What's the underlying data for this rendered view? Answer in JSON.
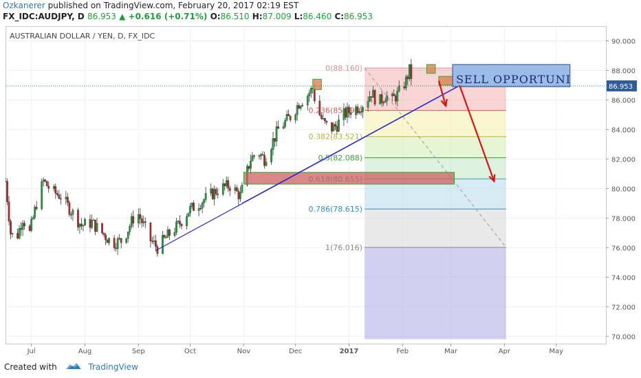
{
  "header": {
    "author": "Ozkanerer",
    "published": "published on TradingView.com, February 20, 2017 02:19 EST",
    "symbol": "FX_IDC:AUDJPY, D",
    "last": "86.953",
    "change": "▲ +0.616 (+0.71%)",
    "o_label": "O:",
    "o": "86.510",
    "h_label": "H:",
    "h": "87.009",
    "l_label": "L:",
    "l": "86.460",
    "c_label": "C:",
    "c": "86.953"
  },
  "footer": {
    "created_with": "Created with",
    "brand": "TradingView"
  },
  "colors": {
    "up": "#1e9e3a",
    "down": "#b22a2a",
    "trend": "#2a2ad0",
    "arrow": "#e01010",
    "price_tag": "#2f5d9c"
  },
  "chart_data": {
    "type": "candlestick",
    "title": "AUSTRALIAN DOLLAR / YEN, D, FX_IDC",
    "ylim": [
      69.5,
      91
    ],
    "y_ticks": [
      "70.000",
      "72.000",
      "74.000",
      "76.000",
      "78.000",
      "80.000",
      "82.000",
      "84.000",
      "86.000",
      "88.000",
      "90.000"
    ],
    "x_ticks": [
      {
        "label": "Jul",
        "day": 15
      },
      {
        "label": "Aug",
        "day": 46
      },
      {
        "label": "Sep",
        "day": 77
      },
      {
        "label": "Oct",
        "day": 107
      },
      {
        "label": "Nov",
        "day": 138
      },
      {
        "label": "Dec",
        "day": 168
      },
      {
        "label": "2017",
        "day": 199
      },
      {
        "label": "Feb",
        "day": 230
      },
      {
        "label": "Mar",
        "day": 258
      },
      {
        "label": "Apr",
        "day": 289
      },
      {
        "label": "May",
        "day": 319
      }
    ],
    "last_price": "86.953",
    "price_path": [
      [
        0,
        80.5
      ],
      [
        3,
        77.0
      ],
      [
        6,
        76.5
      ],
      [
        10,
        78.0
      ],
      [
        14,
        77.0
      ],
      [
        18,
        79.0
      ],
      [
        22,
        80.5
      ],
      [
        27,
        79.8
      ],
      [
        32,
        79.5
      ],
      [
        38,
        78.5
      ],
      [
        44,
        77.5
      ],
      [
        50,
        77.7
      ],
      [
        56,
        77.0
      ],
      [
        62,
        76.3
      ],
      [
        68,
        76.5
      ],
      [
        72,
        77.5
      ],
      [
        76,
        78.5
      ],
      [
        80,
        77.5
      ],
      [
        84,
        76.5
      ],
      [
        88,
        76.0
      ],
      [
        94,
        76.8
      ],
      [
        100,
        77.5
      ],
      [
        106,
        78.5
      ],
      [
        112,
        79.0
      ],
      [
        118,
        79.5
      ],
      [
        124,
        80.0
      ],
      [
        130,
        80.2
      ],
      [
        136,
        79.5
      ],
      [
        142,
        82.0
      ],
      [
        146,
        82.5
      ],
      [
        150,
        82.0
      ],
      [
        154,
        83.0
      ],
      [
        158,
        84.0
      ],
      [
        162,
        84.5
      ],
      [
        166,
        85.0
      ],
      [
        170,
        85.8
      ],
      [
        174,
        86.2
      ],
      [
        178,
        86.8
      ],
      [
        180,
        85.5
      ],
      [
        184,
        84.5
      ],
      [
        188,
        84.0
      ],
      [
        192,
        84.3
      ],
      [
        196,
        85.0
      ],
      [
        200,
        85.3
      ],
      [
        204,
        85.5
      ],
      [
        208,
        85.8
      ],
      [
        212,
        86.5
      ],
      [
        216,
        85.8
      ],
      [
        220,
        86.3
      ],
      [
        224,
        86.0
      ],
      [
        228,
        86.5
      ],
      [
        232,
        87.3
      ],
      [
        234,
        88.0
      ],
      [
        236,
        87.2
      ],
      [
        237,
        86.95
      ]
    ],
    "fibonacci": [
      {
        "ratio": "0",
        "value": 88.16,
        "label": "0(88.160)",
        "color": "#e08f8f",
        "fill": "rgba(235,120,120,0.30)"
      },
      {
        "ratio": "0.236",
        "value": 85.294,
        "label": "0.236(85.294)",
        "color": "#d65a5a",
        "fill": "rgba(245,235,150,0.45)"
      },
      {
        "ratio": "0.382",
        "value": 83.521,
        "label": "0.382(83.521)",
        "color": "#b6b62a",
        "fill": "rgba(200,235,160,0.45)"
      },
      {
        "ratio": "0.5",
        "value": 82.088,
        "label": "0.5(82.088)",
        "color": "#3aa23a",
        "fill": "rgba(170,225,175,0.40)"
      },
      {
        "ratio": "0.618",
        "value": 80.655,
        "label": "0.618(80.655)",
        "color": "#3aa0a0",
        "fill": "rgba(175,215,235,0.50)"
      },
      {
        "ratio": "0.786",
        "value": 78.615,
        "label": "0.786(78.615)",
        "color": "#2a8fc0",
        "fill": "rgba(215,215,215,0.55)"
      },
      {
        "ratio": "1",
        "value": 76.016,
        "label": "1(76.016)",
        "color": "#888888",
        "fill": "rgba(150,150,225,0.45)"
      }
    ],
    "fib_bottom": 69.8,
    "fib_day_range": [
      208,
      290
    ],
    "fib_diagonal": [
      [
        208,
        88.16
      ],
      [
        290,
        76.016
      ]
    ],
    "trendlines": [
      [
        [
          87,
          75.8
        ],
        [
          262,
          86.9
        ]
      ],
      [
        [
          137,
          79.0
        ],
        [
          268,
          87.3
        ]
      ]
    ],
    "zones": [
      {
        "days": [
          138,
          260
        ],
        "y": [
          80.3,
          81.1
        ],
        "fill": "rgba(205,95,95,0.75)",
        "stroke": "#33a833"
      },
      {
        "days": [
          178,
          183
        ],
        "y": [
          86.7,
          87.4
        ],
        "fill": "rgba(215,130,80,0.8)",
        "stroke": "#33a833"
      },
      {
        "days": [
          244,
          249
        ],
        "y": [
          87.8,
          88.4
        ],
        "fill": "rgba(215,130,80,0.8)",
        "stroke": "#33a833"
      },
      {
        "days": [
          251,
          260
        ],
        "y": [
          87.0,
          87.6
        ],
        "fill": "rgba(215,130,80,0.8)",
        "stroke": "#33a833"
      }
    ],
    "annotation": {
      "text": "SELL OPPORTUNITY",
      "days": [
        259,
        327
      ],
      "y": [
        86.9,
        88.4
      ],
      "fill": "#9bbce6",
      "stroke": "#2a4aa0"
    },
    "arrows": [
      [
        [
          251,
          87.3
        ],
        [
          255,
          85.6
        ]
      ],
      [
        [
          263,
          87.0
        ],
        [
          283,
          80.5
        ]
      ]
    ]
  }
}
